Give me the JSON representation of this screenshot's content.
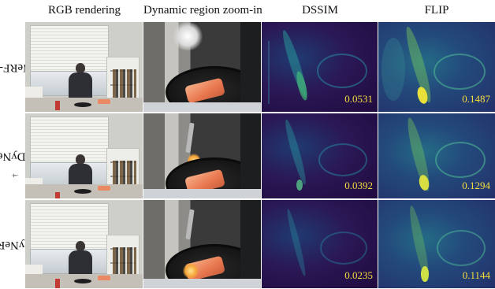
{
  "columns": [
    "RGB rendering",
    "Dynamic region zoom-in",
    "DSSIM",
    "FLIP"
  ],
  "rows": [
    {
      "label": "NeRF-T",
      "sup": "",
      "dssim": "0.0531",
      "flip": "0.1487"
    },
    {
      "label": "DyNeRF",
      "sup": "†",
      "dssim": "0.0392",
      "flip": "0.1294"
    },
    {
      "label": "DyNeRF",
      "sup": "",
      "dssim": "0.0235",
      "flip": "0.1144"
    }
  ],
  "colors": {
    "metric_text": "#f5dd3b",
    "dssim_bg": "#2a1855",
    "flip_bg": "#234a7c"
  }
}
